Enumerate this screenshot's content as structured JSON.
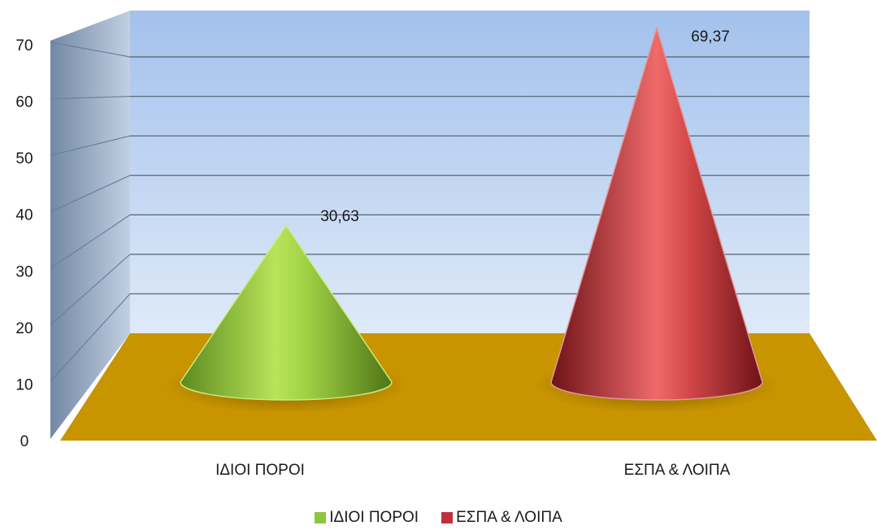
{
  "chart_data": {
    "type": "bar",
    "style": "3d-cone",
    "categories": [
      "ΙΔΙΟΙ ΠΟΡΟΙ",
      "ΕΣΠΑ & ΛΟΙΠΑ"
    ],
    "series": [
      {
        "name": "ΙΔΙΟΙ ΠΟΡΟΙ",
        "values": [
          30.63,
          null
        ],
        "color": "#8cc63f"
      },
      {
        "name": "ΕΣΠΑ & ΛΟΙΠΑ",
        "values": [
          null,
          69.37
        ],
        "color": "#c0303a"
      }
    ],
    "values": [
      30.63,
      69.37
    ],
    "data_labels": [
      "30,63",
      "69,37"
    ],
    "colors": [
      "#8cc63f",
      "#c0303a"
    ],
    "y_ticks": [
      0,
      10,
      20,
      30,
      40,
      50,
      60,
      70
    ],
    "ylim": [
      0,
      70
    ],
    "grid": true,
    "legend_position": "bottom",
    "wall_color": "#a8c4e8",
    "floor_color": "#c89400"
  }
}
